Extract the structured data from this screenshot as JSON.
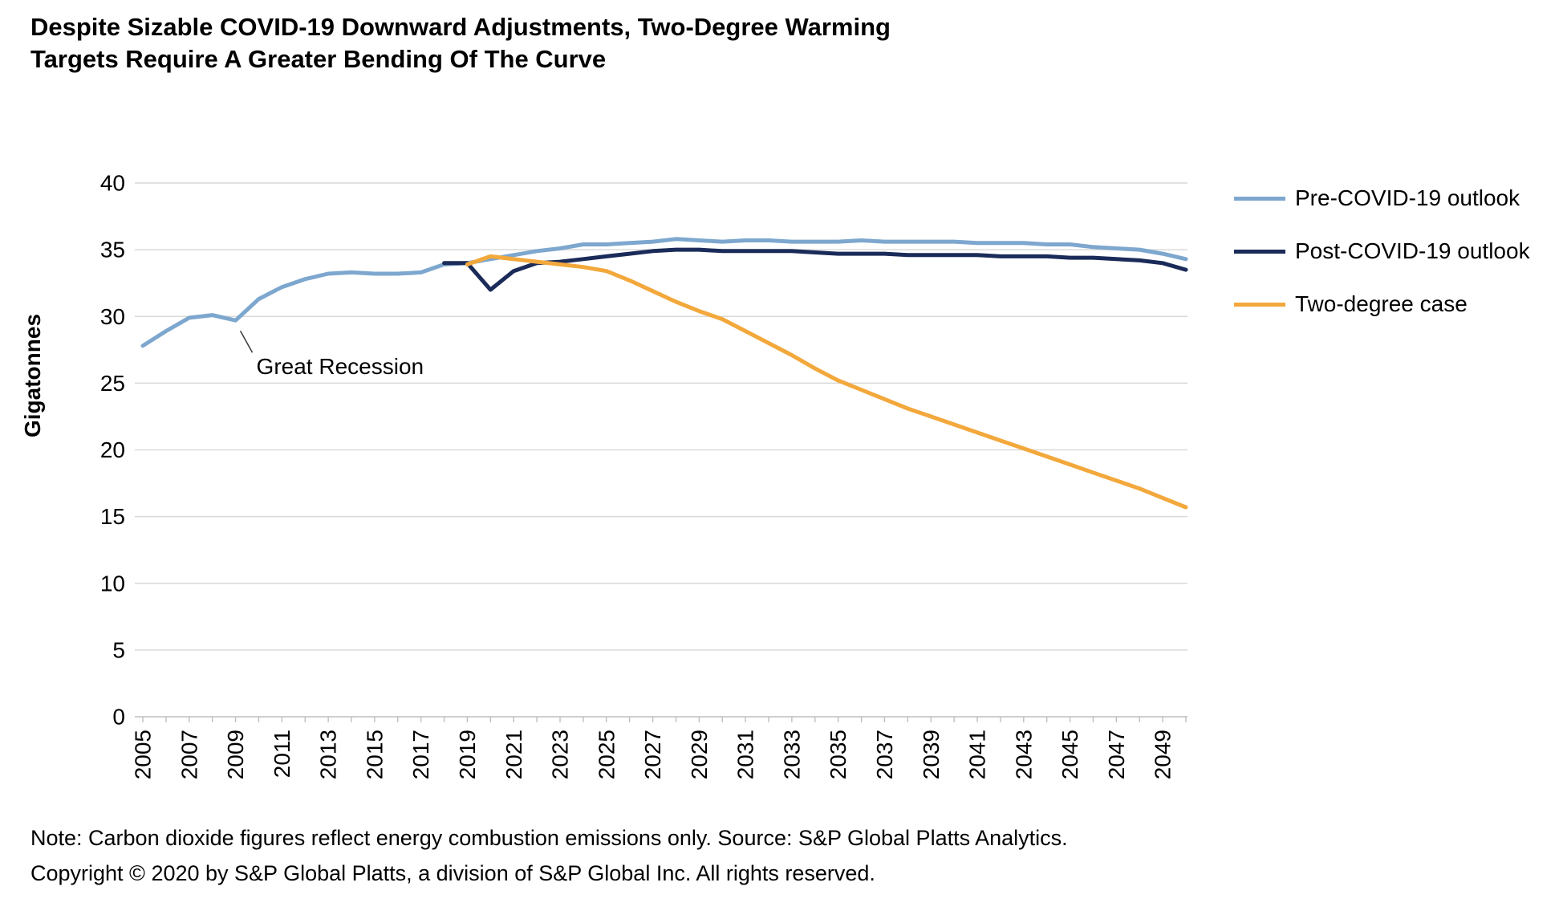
{
  "header": {
    "title": "Despite Sizable COVID-19 Downward Adjustments, Two-Degree Warming\nTargets Require A Greater Bending Of The Curve"
  },
  "chart_data": {
    "type": "line",
    "title": "Despite Sizable COVID-19 Downward Adjustments, Two-Degree Warming Targets Require A Greater Bending Of The Curve",
    "xlabel": "",
    "ylabel": "Gigatonnes",
    "ylim": [
      0,
      40
    ],
    "ytick_step": 5,
    "xlim": [
      2005,
      2050
    ],
    "xtick_labels": [
      "2005",
      "2007",
      "2009",
      "2011",
      "2013",
      "2015",
      "2017",
      "2019",
      "2021",
      "2023",
      "2025",
      "2027",
      "2029",
      "2031",
      "2033",
      "2035",
      "2037",
      "2039",
      "2041",
      "2043",
      "2045",
      "2047",
      "2049"
    ],
    "grid": "horizontal",
    "legend_position": "right",
    "annotation": {
      "text": "Great Recession",
      "x": 2009,
      "y": 29.7
    },
    "series": [
      {
        "name": "Pre-COVID-19 outlook",
        "color": "#7DA7CE",
        "x": [
          2005,
          2006,
          2007,
          2008,
          2009,
          2010,
          2011,
          2012,
          2013,
          2014,
          2015,
          2016,
          2017,
          2018,
          2019,
          2020,
          2021,
          2022,
          2023,
          2024,
          2025,
          2026,
          2027,
          2028,
          2029,
          2030,
          2031,
          2032,
          2033,
          2034,
          2035,
          2036,
          2037,
          2038,
          2039,
          2040,
          2041,
          2042,
          2043,
          2044,
          2045,
          2046,
          2047,
          2048,
          2049,
          2050
        ],
        "values": [
          27.8,
          28.9,
          29.9,
          30.1,
          29.7,
          31.3,
          32.2,
          32.8,
          33.2,
          33.3,
          33.2,
          33.2,
          33.3,
          33.9,
          34.0,
          34.3,
          34.6,
          34.9,
          35.1,
          35.4,
          35.4,
          35.5,
          35.6,
          35.8,
          35.7,
          35.6,
          35.7,
          35.7,
          35.6,
          35.6,
          35.6,
          35.7,
          35.6,
          35.6,
          35.6,
          35.6,
          35.5,
          35.5,
          35.5,
          35.4,
          35.4,
          35.2,
          35.1,
          35.0,
          34.7,
          34.3
        ]
      },
      {
        "name": "Post-COVID-19 outlook",
        "color": "#1B2B59",
        "x": [
          2018,
          2019,
          2020,
          2021,
          2022,
          2023,
          2024,
          2025,
          2026,
          2027,
          2028,
          2029,
          2030,
          2031,
          2032,
          2033,
          2034,
          2035,
          2036,
          2037,
          2038,
          2039,
          2040,
          2041,
          2042,
          2043,
          2044,
          2045,
          2046,
          2047,
          2048,
          2049,
          2050
        ],
        "values": [
          34.0,
          34.0,
          32.0,
          33.4,
          34.0,
          34.1,
          34.3,
          34.5,
          34.7,
          34.9,
          35.0,
          35.0,
          34.9,
          34.9,
          34.9,
          34.9,
          34.8,
          34.7,
          34.7,
          34.7,
          34.6,
          34.6,
          34.6,
          34.6,
          34.5,
          34.5,
          34.5,
          34.4,
          34.4,
          34.3,
          34.2,
          34.0,
          33.5
        ]
      },
      {
        "name": "Two-degree case",
        "color": "#F3A83C",
        "x": [
          2019,
          2020,
          2021,
          2022,
          2023,
          2024,
          2025,
          2026,
          2027,
          2028,
          2029,
          2030,
          2031,
          2032,
          2033,
          2034,
          2035,
          2036,
          2037,
          2038,
          2039,
          2040,
          2041,
          2042,
          2043,
          2044,
          2045,
          2046,
          2047,
          2048,
          2049,
          2050
        ],
        "values": [
          33.9,
          34.5,
          34.3,
          34.1,
          33.9,
          33.7,
          33.4,
          32.7,
          31.9,
          31.1,
          30.4,
          29.8,
          28.9,
          28.0,
          27.1,
          26.1,
          25.2,
          24.5,
          23.8,
          23.1,
          22.5,
          21.9,
          21.3,
          20.7,
          20.1,
          19.5,
          18.9,
          18.3,
          17.7,
          17.1,
          16.4,
          15.7
        ]
      }
    ]
  },
  "footer": {
    "note": "Note: Carbon dioxide figures reflect energy combustion emissions only. Source: S&P Global Platts Analytics.",
    "copyright": "Copyright © 2020 by S&P Global Platts, a division of S&P Global Inc. All rights reserved."
  }
}
